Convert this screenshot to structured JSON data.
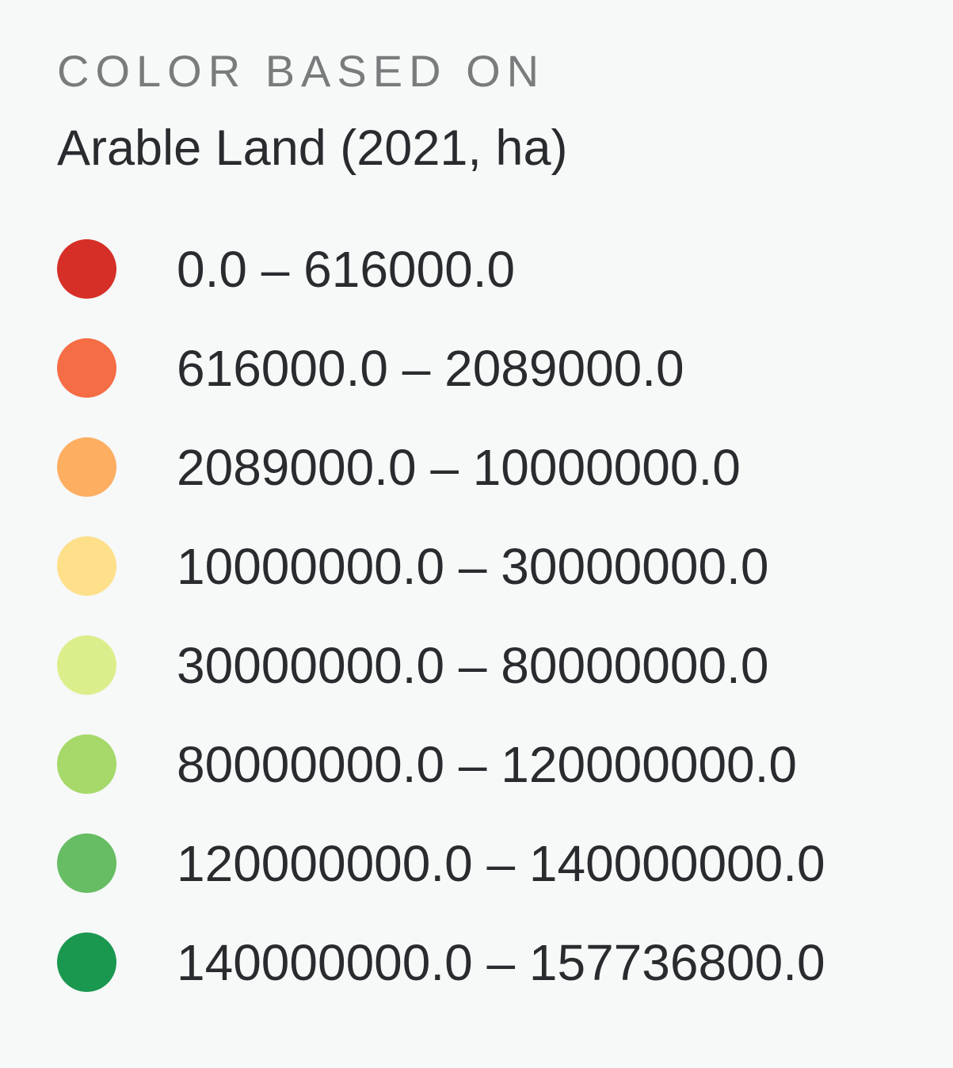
{
  "legend": {
    "header": "COLOR BASED ON",
    "title": "Arable Land (2021, ha)",
    "items": [
      {
        "label": "0.0 – 616000.0",
        "color": "#d62f27"
      },
      {
        "label": "616000.0 – 2089000.0",
        "color": "#f46d45"
      },
      {
        "label": "2089000.0 – 10000000.0",
        "color": "#fdae61"
      },
      {
        "label": "10000000.0 – 30000000.0",
        "color": "#fee08a"
      },
      {
        "label": "30000000.0 – 80000000.0",
        "color": "#daef8b"
      },
      {
        "label": "80000000.0 – 120000000.0",
        "color": "#a6d96a"
      },
      {
        "label": "120000000.0 – 140000000.0",
        "color": "#66bd63"
      },
      {
        "label": "140000000.0 – 157736800.0",
        "color": "#1a9850"
      }
    ]
  }
}
